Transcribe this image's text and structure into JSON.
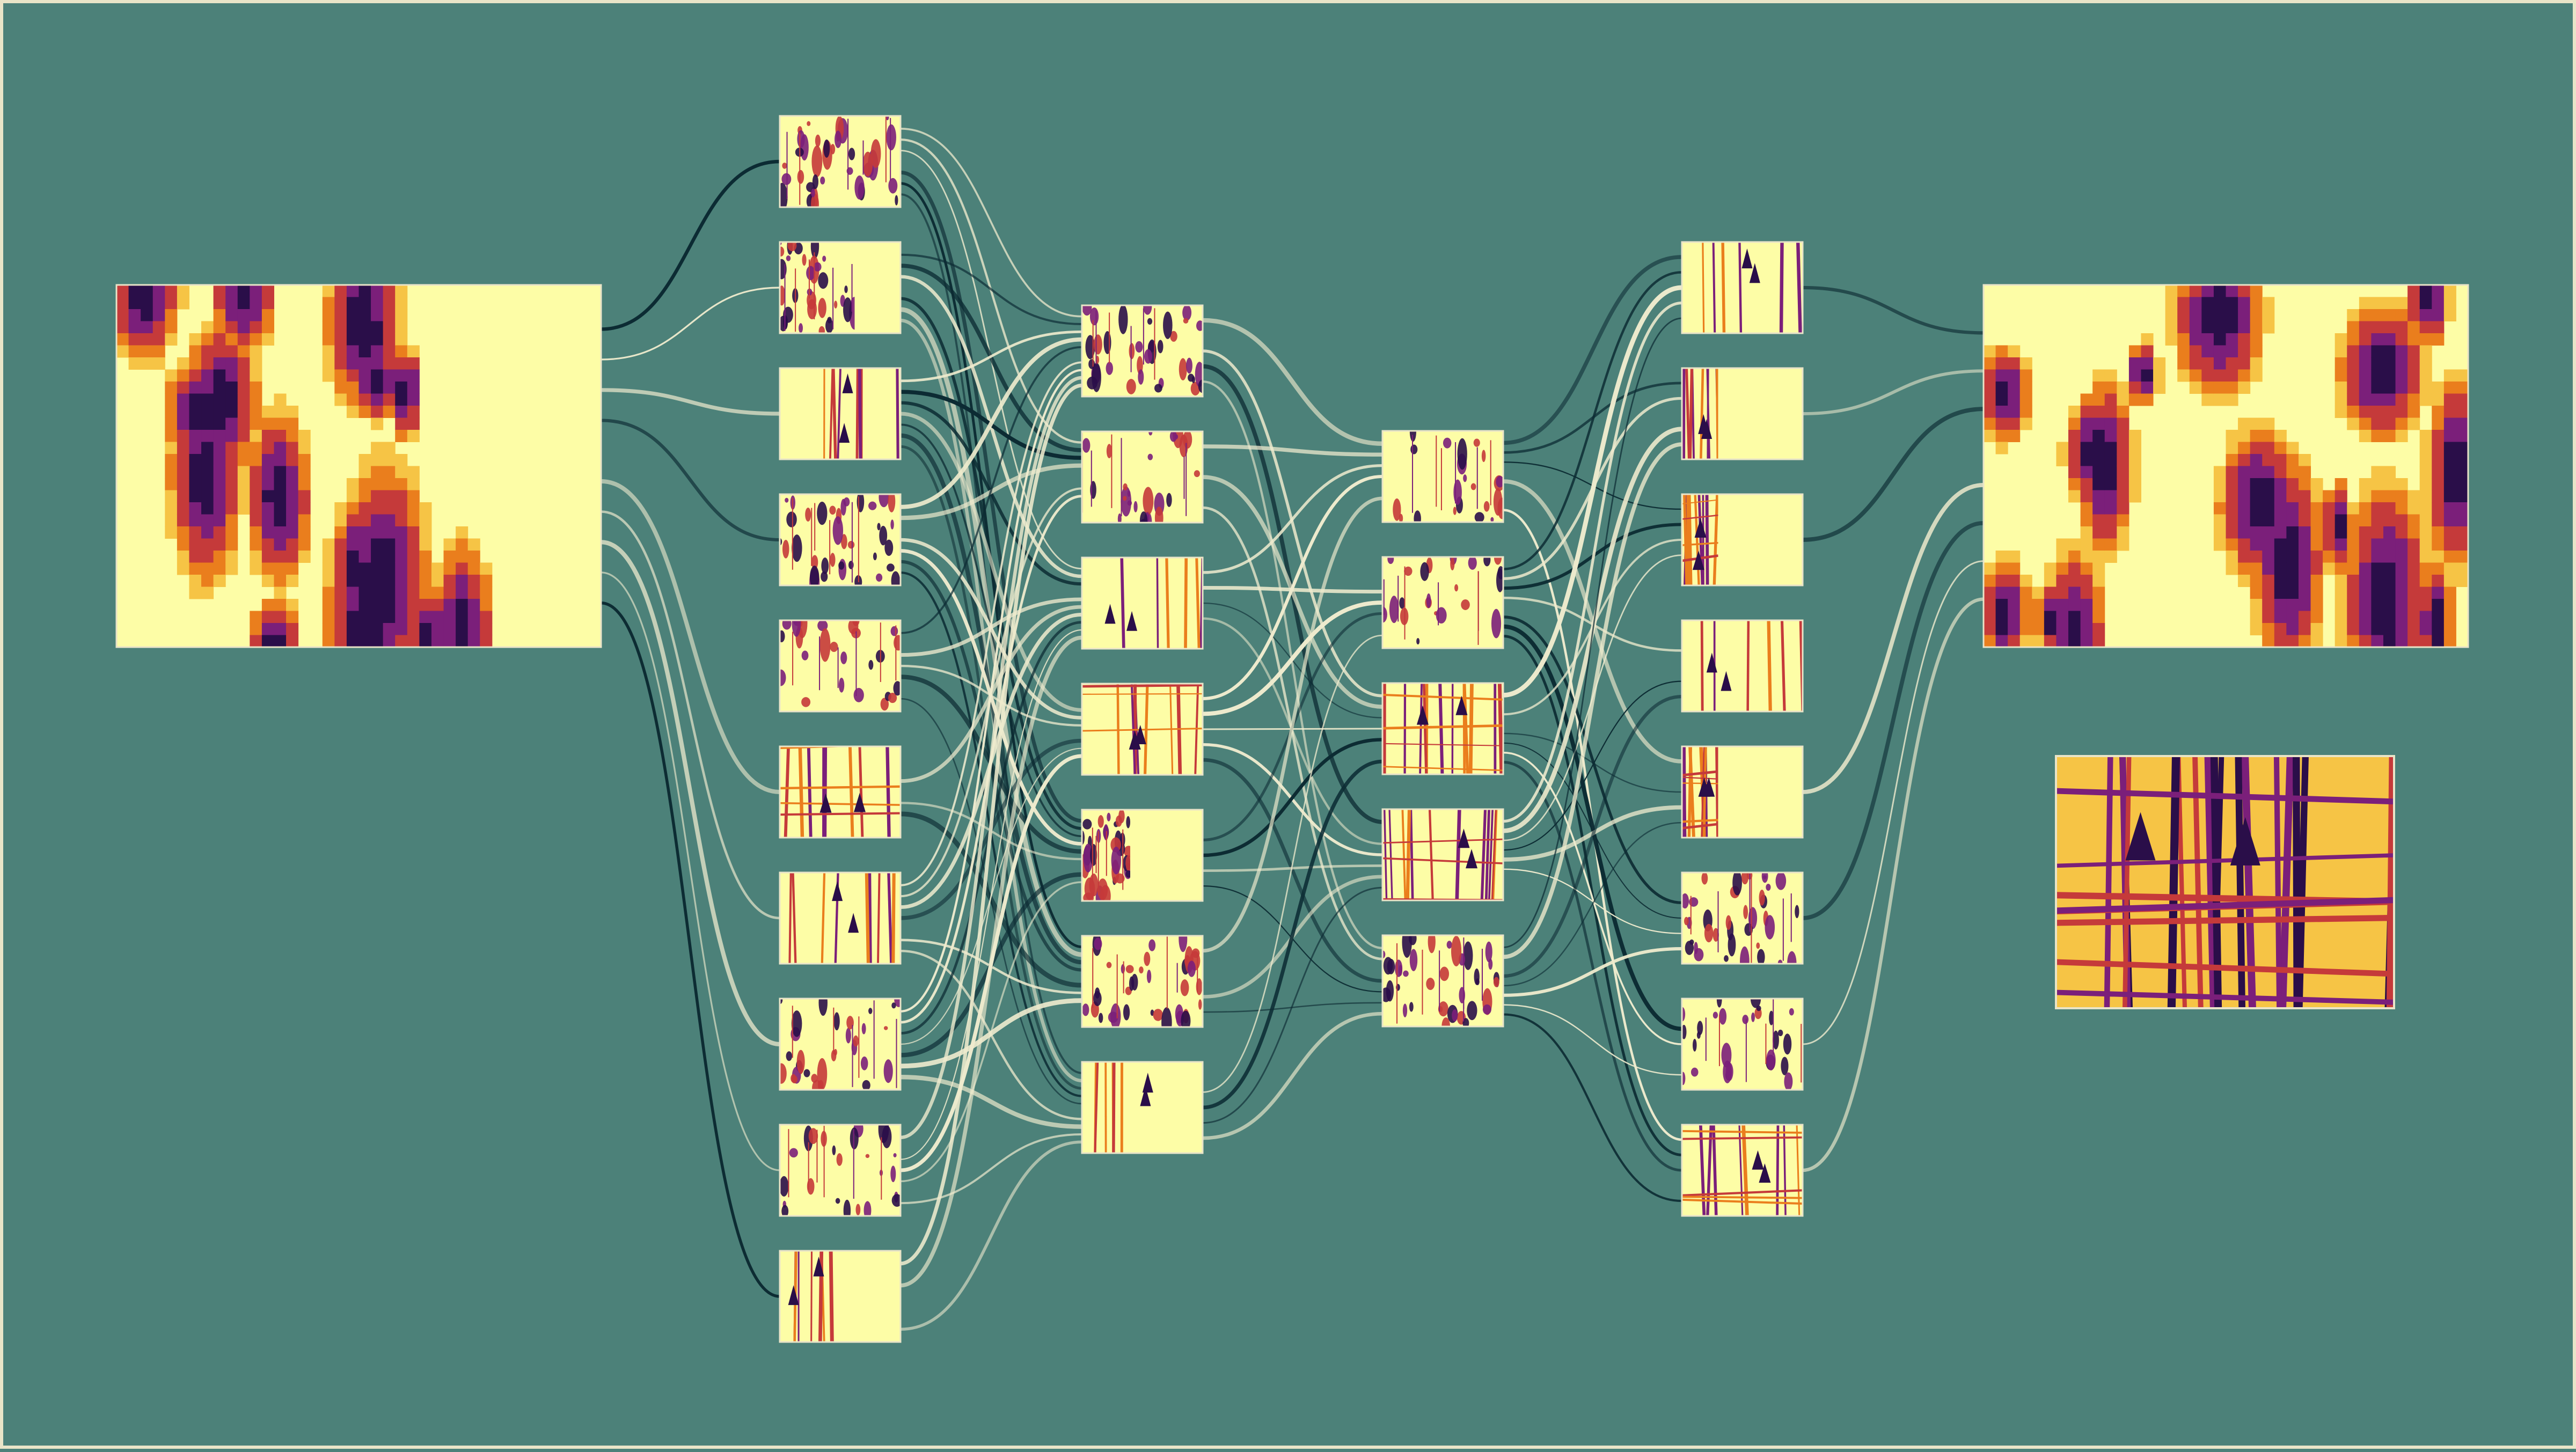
{
  "palette": {
    "background": "#4c8179",
    "frame": "#e9e4c8",
    "tile_fill": "#fdfda6",
    "tile_border": "#e9e4c8",
    "edge_light": "#efebce",
    "edge_dark": "#0c2b33",
    "heat_dark": "#2a0e49",
    "heat_mid": "#7b1f7a",
    "heat_red": "#c53a3a",
    "heat_orange": "#ea7e1d",
    "heat_yellow": "#f6c445"
  },
  "network": {
    "layer_sizes": [
      1,
      10,
      7,
      5,
      8,
      1
    ],
    "extra_output_count": 1,
    "feature_map_patterns": [
      "blobs",
      "blobs",
      "vertical-lines",
      "blobs",
      "blobs",
      "grid",
      "vertical-lines",
      "blobs",
      "blobs",
      "vertical-lines",
      "blobs",
      "blobs",
      "vertical-lines",
      "grid",
      "blobs",
      "blobs",
      "vertical-lines",
      "blobs",
      "blobs",
      "grid",
      "grid",
      "blobs",
      "vertical-lines",
      "vertical-lines",
      "grid",
      "vertical-lines",
      "grid",
      "blobs",
      "blobs",
      "grid",
      "grid",
      "blobs"
    ]
  }
}
